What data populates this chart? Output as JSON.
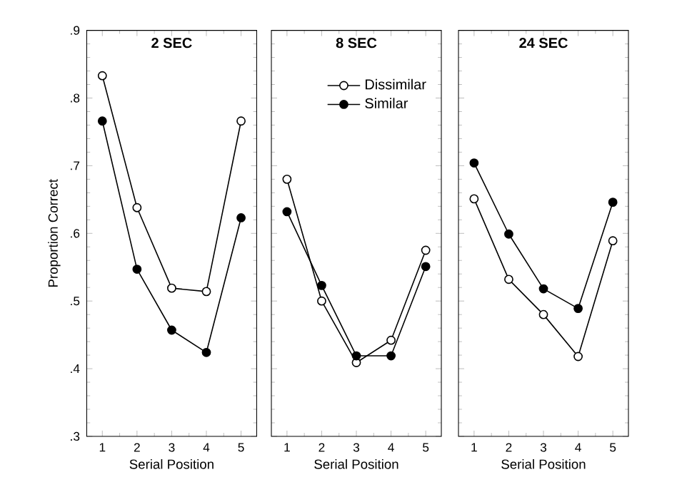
{
  "chart_data": [
    {
      "type": "line",
      "title": "2 SEC",
      "xlabel": "Serial Position",
      "ylabel": "Proportion Correct",
      "x": [
        1,
        2,
        3,
        4,
        5
      ],
      "xlim": [
        0.55,
        5.45
      ],
      "ylim": [
        0.3,
        0.9
      ],
      "xticks": [
        1,
        2,
        3,
        4,
        5
      ],
      "yticks": [
        {
          "value": 0.3,
          "label": ".3"
        },
        {
          "value": 0.4,
          "label": ".4"
        },
        {
          "value": 0.5,
          "label": ".5"
        },
        {
          "value": 0.6,
          "label": ".6"
        },
        {
          "value": 0.7,
          "label": ".7"
        },
        {
          "value": 0.8,
          "label": ".8"
        },
        {
          "value": 0.9,
          "label": ".9"
        }
      ],
      "marker": "circle",
      "grid": false,
      "legend": false,
      "series": [
        {
          "color": "#ffffff",
          "values": [
            0.833,
            0.638,
            0.519,
            0.514,
            0.766
          ]
        },
        {
          "color": "#000000",
          "values": [
            0.766,
            0.547,
            0.457,
            0.424,
            0.623
          ]
        }
      ]
    },
    {
      "type": "line",
      "title": "8 SEC",
      "xlabel": "Serial Position",
      "x": [
        1,
        2,
        3,
        4,
        5
      ],
      "xlim": [
        0.55,
        5.45
      ],
      "ylim": [
        0.3,
        0.9
      ],
      "xticks": [
        1,
        2,
        3,
        4,
        5
      ],
      "yticks": [
        {
          "value": 0.3,
          "label": null
        },
        {
          "value": 0.4,
          "label": null
        },
        {
          "value": 0.5,
          "label": null
        },
        {
          "value": 0.6,
          "label": null
        },
        {
          "value": 0.7,
          "label": null
        },
        {
          "value": 0.8,
          "label": null
        },
        {
          "value": 0.9,
          "label": null
        }
      ],
      "tick_labels": "x",
      "marker": "circle",
      "grid": false,
      "legend": "top right",
      "series": [
        {
          "name": "Dissimilar",
          "color": "#ffffff",
          "values": [
            0.68,
            0.5,
            0.409,
            0.442,
            0.575
          ]
        },
        {
          "name": "Similar",
          "color": "#000000",
          "values": [
            0.632,
            0.523,
            0.419,
            0.419,
            0.551
          ]
        }
      ]
    },
    {
      "type": "line",
      "title": "24 SEC",
      "xlabel": "Serial Position",
      "x": [
        1,
        2,
        3,
        4,
        5
      ],
      "xlim": [
        0.55,
        5.45
      ],
      "ylim": [
        0.3,
        0.9
      ],
      "xticks": [
        1,
        2,
        3,
        4,
        5
      ],
      "yticks": [
        {
          "value": 0.3,
          "label": null
        },
        {
          "value": 0.4,
          "label": null
        },
        {
          "value": 0.5,
          "label": null
        },
        {
          "value": 0.6,
          "label": null
        },
        {
          "value": 0.7,
          "label": null
        },
        {
          "value": 0.8,
          "label": null
        },
        {
          "value": 0.9,
          "label": null
        }
      ],
      "tick_labels": "x",
      "marker": "circle",
      "grid": false,
      "legend": false,
      "series": [
        {
          "color": "#ffffff",
          "values": [
            0.651,
            0.532,
            0.48,
            0.418,
            0.589
          ]
        },
        {
          "color": "#000000",
          "values": [
            0.704,
            0.599,
            0.518,
            0.489,
            0.646
          ]
        }
      ]
    }
  ]
}
